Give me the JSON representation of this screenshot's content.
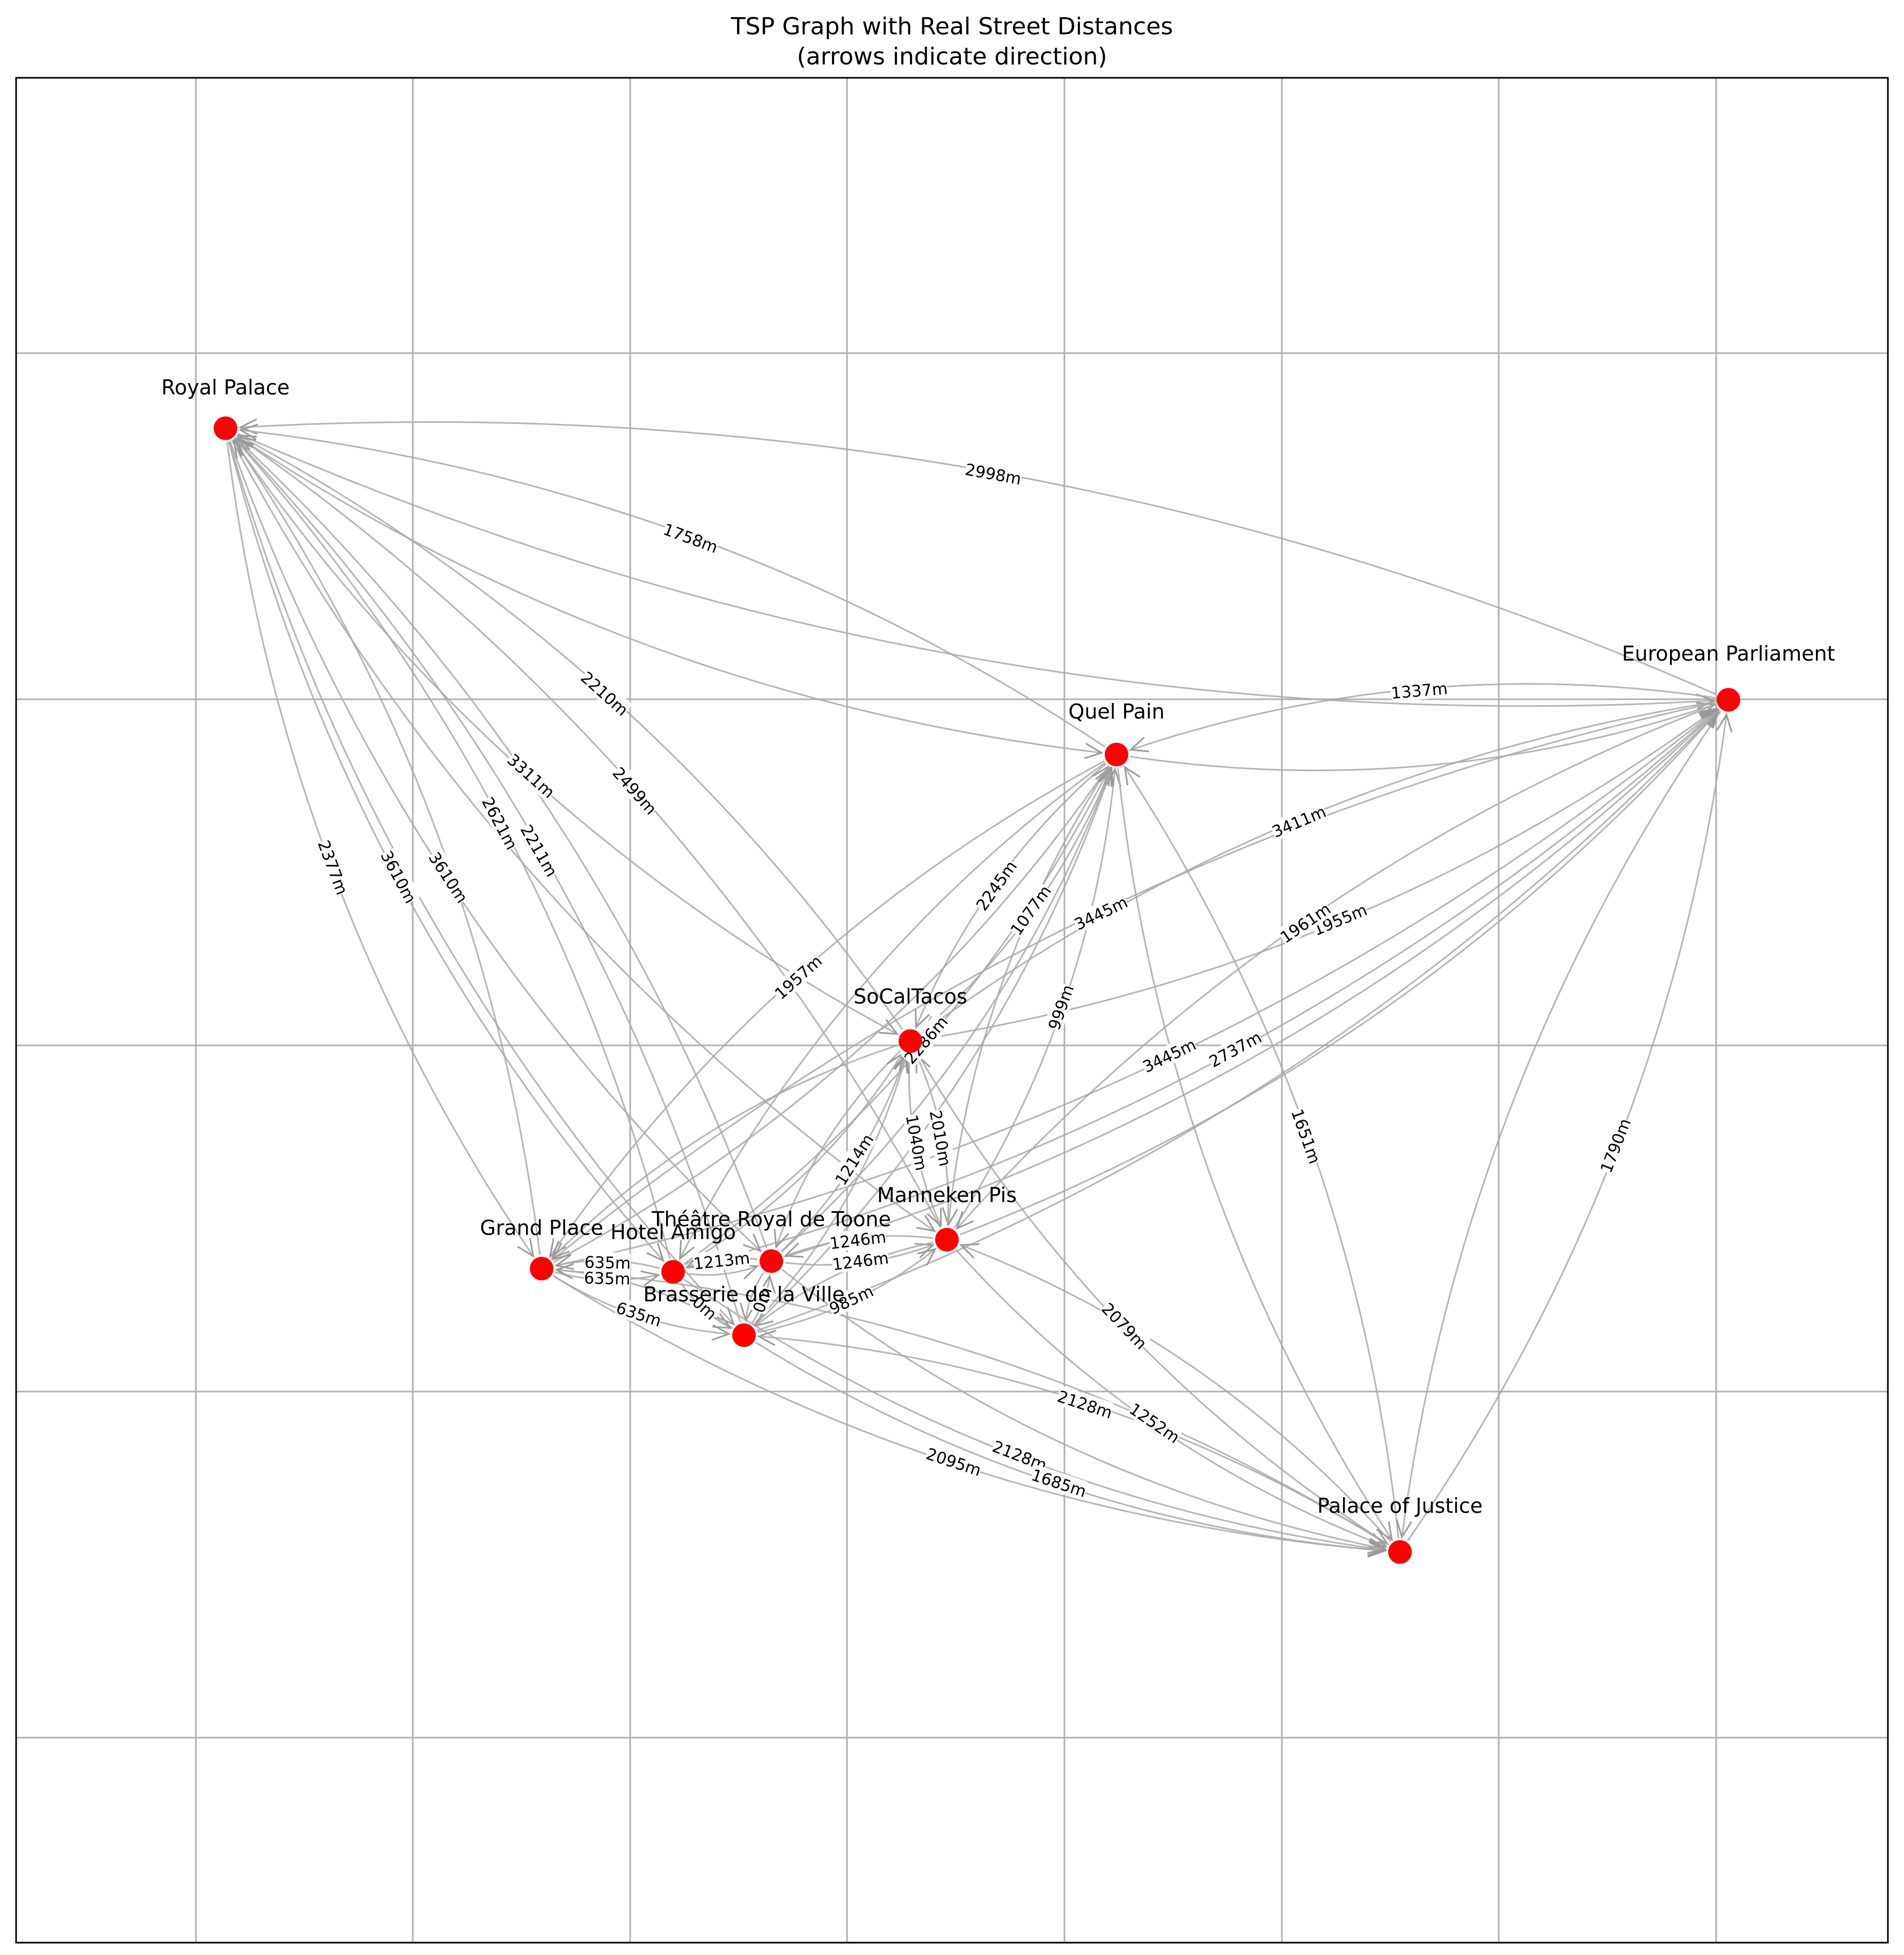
{
  "title_line1": "TSP Graph with Real Street Distances",
  "title_line2": "(arrows indicate direction)",
  "nodes": [
    {
      "id": "royal",
      "name": "Royal Palace"
    },
    {
      "id": "ep",
      "name": "European Parliament"
    },
    {
      "id": "quel",
      "name": "Quel Pain"
    },
    {
      "id": "socal",
      "name": "SoCalTacos"
    },
    {
      "id": "mp",
      "name": "Manneken Pis"
    },
    {
      "id": "toone",
      "name": "Théâtre Royal de Toone"
    },
    {
      "id": "gp",
      "name": "Grand Place"
    },
    {
      "id": "amigo",
      "name": "Hotel Amigo"
    },
    {
      "id": "brass",
      "name": "Brasserie de la Ville"
    },
    {
      "id": "poj",
      "name": "Palace of Justice"
    }
  ],
  "edges": [
    {
      "from": "ep",
      "to": "royal",
      "label": "2998m"
    },
    {
      "from": "quel",
      "to": "royal",
      "label": "1758m"
    },
    {
      "from": "royal",
      "to": "ep",
      "label": ""
    },
    {
      "from": "royal",
      "to": "quel",
      "label": ""
    },
    {
      "from": "ep",
      "to": "quel",
      "label": "1337m"
    },
    {
      "from": "quel",
      "to": "ep",
      "label": ""
    },
    {
      "from": "socal",
      "to": "royal",
      "label": "2210m"
    },
    {
      "from": "royal",
      "to": "socal",
      "label": "3311m"
    },
    {
      "from": "mp",
      "to": "royal",
      "label": "2499m"
    },
    {
      "from": "royal",
      "to": "mp",
      "label": ""
    },
    {
      "from": "royal",
      "to": "gp",
      "label": "2377m"
    },
    {
      "from": "gp",
      "to": "royal",
      "label": ""
    },
    {
      "from": "royal",
      "to": "amigo",
      "label": "3610m"
    },
    {
      "from": "amigo",
      "to": "royal",
      "label": "2621m"
    },
    {
      "from": "royal",
      "to": "toone",
      "label": "3610m"
    },
    {
      "from": "toone",
      "to": "royal",
      "label": ""
    },
    {
      "from": "brass",
      "to": "royal",
      "label": "2211m"
    },
    {
      "from": "royal",
      "to": "brass",
      "label": ""
    },
    {
      "from": "socal",
      "to": "quel",
      "label": "1077m"
    },
    {
      "from": "quel",
      "to": "socal",
      "label": "2245m"
    },
    {
      "from": "gp",
      "to": "quel",
      "label": ""
    },
    {
      "from": "quel",
      "to": "gp",
      "label": "1957m"
    },
    {
      "from": "amigo",
      "to": "quel",
      "label": "2286m"
    },
    {
      "from": "quel",
      "to": "amigo",
      "label": ""
    },
    {
      "from": "mp",
      "to": "quel",
      "label": "999m"
    },
    {
      "from": "quel",
      "to": "mp",
      "label": ""
    },
    {
      "from": "poj",
      "to": "quel",
      "label": "1651m"
    },
    {
      "from": "quel",
      "to": "poj",
      "label": ""
    },
    {
      "from": "toone",
      "to": "quel",
      "label": ""
    },
    {
      "from": "brass",
      "to": "quel",
      "label": ""
    },
    {
      "from": "socal",
      "to": "ep",
      "label": "1955m"
    },
    {
      "from": "ep",
      "to": "socal",
      "label": "3411m"
    },
    {
      "from": "gp",
      "to": "ep",
      "label": "3445m"
    },
    {
      "from": "ep",
      "to": "gp",
      "label": "3445m"
    },
    {
      "from": "amigo",
      "to": "ep",
      "label": "2737m"
    },
    {
      "from": "ep",
      "to": "mp",
      "label": "1961m"
    },
    {
      "from": "mp",
      "to": "ep",
      "label": ""
    },
    {
      "from": "poj",
      "to": "ep",
      "label": "1790m"
    },
    {
      "from": "ep",
      "to": "poj",
      "label": ""
    },
    {
      "from": "brass",
      "to": "ep",
      "label": ""
    },
    {
      "from": "toone",
      "to": "ep",
      "label": ""
    },
    {
      "from": "socal",
      "to": "mp",
      "label": "1040m"
    },
    {
      "from": "mp",
      "to": "socal",
      "label": "2010m"
    },
    {
      "from": "socal",
      "to": "gp",
      "label": ""
    },
    {
      "from": "toone",
      "to": "socal",
      "label": "1214m"
    },
    {
      "from": "socal",
      "to": "toone",
      "label": ""
    },
    {
      "from": "amigo",
      "to": "socal",
      "label": ""
    },
    {
      "from": "brass",
      "to": "socal",
      "label": ""
    },
    {
      "from": "socal",
      "to": "poj",
      "label": "2079m"
    },
    {
      "from": "toone",
      "to": "mp",
      "label": "1246m"
    },
    {
      "from": "mp",
      "to": "toone",
      "label": "1246m"
    },
    {
      "from": "brass",
      "to": "mp",
      "label": "985m"
    },
    {
      "from": "mp",
      "to": "brass",
      "label": ""
    },
    {
      "from": "mp",
      "to": "poj",
      "label": "1252m"
    },
    {
      "from": "poj",
      "to": "mp",
      "label": ""
    },
    {
      "from": "toone",
      "to": "amigo",
      "label": "1213m"
    },
    {
      "from": "amigo",
      "to": "toone",
      "label": ""
    },
    {
      "from": "gp",
      "to": "amigo",
      "label": "635m"
    },
    {
      "from": "amigo",
      "to": "gp",
      "label": "635m"
    },
    {
      "from": "gp",
      "to": "brass",
      "label": "635m"
    },
    {
      "from": "brass",
      "to": "gp",
      "label": ""
    },
    {
      "from": "amigo",
      "to": "brass",
      "label": "0m"
    },
    {
      "from": "brass",
      "to": "toone",
      "label": "0m"
    },
    {
      "from": "toone",
      "to": "brass",
      "label": ""
    },
    {
      "from": "gp",
      "to": "poj",
      "label": "2095m"
    },
    {
      "from": "poj",
      "to": "gp",
      "label": ""
    },
    {
      "from": "amigo",
      "to": "poj",
      "label": "2128m"
    },
    {
      "from": "poj",
      "to": "brass",
      "label": "2128m"
    },
    {
      "from": "brass",
      "to": "poj",
      "label": "1685m"
    },
    {
      "from": "toone",
      "to": "poj",
      "label": ""
    }
  ]
}
